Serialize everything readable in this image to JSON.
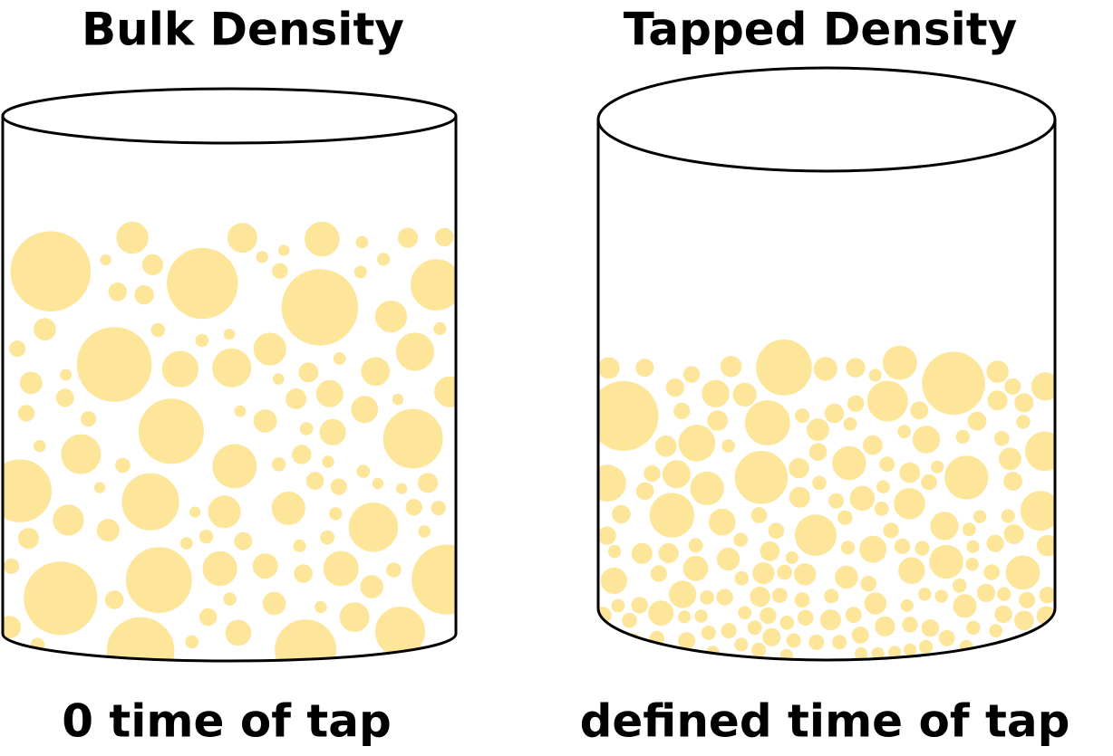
{
  "panels": [
    {
      "title": "Bulk Density",
      "caption": "0 time of tap"
    },
    {
      "title": "Tapped Density",
      "caption": "defined time of tap"
    }
  ]
}
